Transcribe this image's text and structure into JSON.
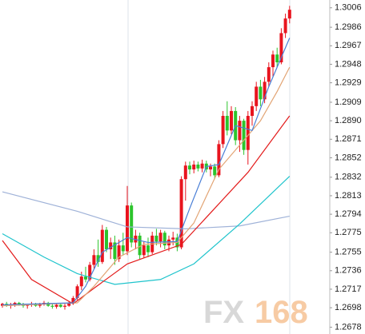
{
  "chart_data": {
    "type": "candlestick",
    "open": [
      1.27,
      1.2702,
      1.27,
      1.2701,
      1.2703,
      1.2701,
      1.27,
      1.2701,
      1.2702,
      1.27,
      1.2702,
      1.2703,
      1.27,
      1.2699,
      1.2701,
      1.2699,
      1.27,
      1.2703,
      1.2708,
      1.272,
      1.273,
      1.2727,
      1.2742,
      1.2752,
      1.2745,
      1.2778,
      1.2758,
      1.2765,
      1.2748,
      1.2762,
      1.2756,
      1.2803,
      1.2765,
      1.2772,
      1.2752,
      1.2762,
      1.2755,
      1.2772,
      1.2766,
      1.2775,
      1.2762,
      1.2768,
      1.277,
      1.276,
      1.283,
      1.2844,
      1.284,
      1.2845,
      1.2841,
      1.2846,
      1.284,
      1.2843,
      1.2834,
      1.2866,
      1.2895,
      1.288,
      1.29,
      1.287,
      1.289,
      1.286,
      1.2895,
      1.2905,
      1.2925,
      1.2912,
      1.293,
      1.2945,
      1.2958,
      1.295,
      1.298,
      1.2995
    ],
    "high": [
      1.2703,
      1.2704,
      1.2703,
      1.2704,
      1.2704,
      1.2703,
      1.2702,
      1.2704,
      1.2703,
      1.2703,
      1.2705,
      1.2704,
      1.2702,
      1.2702,
      1.2703,
      1.2702,
      1.2704,
      1.271,
      1.2722,
      1.2735,
      1.274,
      1.2745,
      1.2758,
      1.2768,
      1.2783,
      1.2781,
      1.277,
      1.2772,
      1.2768,
      1.2775,
      1.2823,
      1.2806,
      1.2778,
      1.2775,
      1.2766,
      1.277,
      1.2776,
      1.2779,
      1.2778,
      1.2777,
      1.2772,
      1.2776,
      1.2774,
      1.2833,
      1.2848,
      1.2848,
      1.2849,
      1.2848,
      1.285,
      1.2849,
      1.2846,
      1.2846,
      1.287,
      1.29,
      1.291,
      1.2905,
      1.2904,
      1.2895,
      1.2892,
      1.29,
      1.291,
      1.293,
      1.2932,
      1.2935,
      1.295,
      1.2962,
      1.2965,
      1.2985,
      1.3,
      1.3008
    ],
    "low": [
      1.2698,
      1.2699,
      1.2697,
      1.2699,
      1.27,
      1.2698,
      1.2697,
      1.2699,
      1.2699,
      1.2698,
      1.27,
      1.2699,
      1.2697,
      1.2697,
      1.2698,
      1.2696,
      1.2699,
      1.2701,
      1.2706,
      1.2716,
      1.2724,
      1.2725,
      1.2738,
      1.274,
      1.2743,
      1.2755,
      1.2748,
      1.2742,
      1.2745,
      1.2752,
      1.2752,
      1.276,
      1.2758,
      1.2748,
      1.2749,
      1.275,
      1.2753,
      1.2762,
      1.276,
      1.2758,
      1.2756,
      1.2762,
      1.2756,
      1.2758,
      1.2808,
      1.2835,
      1.2836,
      1.2838,
      1.2837,
      1.2837,
      1.2833,
      1.283,
      1.2832,
      1.2862,
      1.2875,
      1.2876,
      1.2865,
      1.2858,
      1.2855,
      1.2845,
      1.2885,
      1.29,
      1.2905,
      1.2908,
      1.2925,
      1.2935,
      1.2945,
      1.2948,
      1.2975,
      1.299
    ],
    "close": [
      1.2702,
      1.27,
      1.2701,
      1.2703,
      1.2701,
      1.27,
      1.2701,
      1.2702,
      1.27,
      1.2702,
      1.2703,
      1.27,
      1.2699,
      1.2701,
      1.2699,
      1.27,
      1.2703,
      1.2708,
      1.272,
      1.273,
      1.2727,
      1.2742,
      1.2752,
      1.2745,
      1.2778,
      1.2758,
      1.2765,
      1.2748,
      1.2762,
      1.2756,
      1.2803,
      1.2765,
      1.2772,
      1.2752,
      1.2762,
      1.2755,
      1.2772,
      1.2766,
      1.2775,
      1.2762,
      1.2768,
      1.277,
      1.276,
      1.283,
      1.2844,
      1.284,
      1.2845,
      1.2841,
      1.2846,
      1.284,
      1.2843,
      1.2834,
      1.2866,
      1.2895,
      1.288,
      1.29,
      1.287,
      1.289,
      1.286,
      1.2895,
      1.2905,
      1.2925,
      1.2912,
      1.293,
      1.2945,
      1.2958,
      1.295,
      1.298,
      1.2995,
      1.3004
    ],
    "up_color": "#e8141e",
    "down_color": "#2cc42c",
    "lines": [
      {
        "color": "#9fb2d8",
        "x": [
          0,
          18,
          30,
          44,
          57,
          69
        ],
        "values": [
          1.2817,
          1.2797,
          1.2781,
          1.2779,
          1.2782,
          1.2792
        ]
      },
      {
        "color": "#1fc4cc",
        "x": [
          0,
          10,
          18,
          27,
          38,
          46,
          57,
          69
        ],
        "values": [
          1.2774,
          1.275,
          1.2733,
          1.2722,
          1.2727,
          1.2743,
          1.2784,
          1.2833
        ]
      },
      {
        "color": "#e31b1b",
        "x": [
          0,
          7,
          17,
          22,
          30,
          43,
          51,
          59,
          69
        ],
        "values": [
          1.2767,
          1.2727,
          1.2702,
          1.2718,
          1.2743,
          1.2763,
          1.28,
          1.2837,
          1.2895
        ]
      },
      {
        "color": "#e2a474",
        "x": [
          0,
          18,
          22,
          28,
          34,
          42,
          46,
          52,
          57,
          62,
          66,
          69
        ],
        "values": [
          1.27,
          1.2703,
          1.272,
          1.275,
          1.2763,
          1.2765,
          1.2785,
          1.284,
          1.2865,
          1.289,
          1.292,
          1.2945
        ]
      },
      {
        "color": "#4a7fd6",
        "x": [
          0,
          17,
          20,
          24,
          30,
          35,
          42,
          45,
          49,
          52,
          56,
          60,
          64,
          69
        ],
        "values": [
          1.2701,
          1.2703,
          1.272,
          1.2755,
          1.277,
          1.2765,
          1.2766,
          1.28,
          1.2843,
          1.2845,
          1.2885,
          1.288,
          1.2925,
          1.2975
        ]
      }
    ],
    "ylim": [
      1.2671,
      1.3014
    ],
    "yticks": [
      1.3006,
      1.2986,
      1.2967,
      1.2948,
      1.2929,
      1.2909,
      {
        "value": 1.289,
        "label": "1.2890"
      },
      1.2871,
      1.2852,
      1.2832,
      1.2813,
      1.2794,
      1.2775,
      1.2755,
      1.2736,
      1.2717,
      1.2698,
      1.2678
    ],
    "watermark": [
      "FX",
      "168"
    ]
  }
}
